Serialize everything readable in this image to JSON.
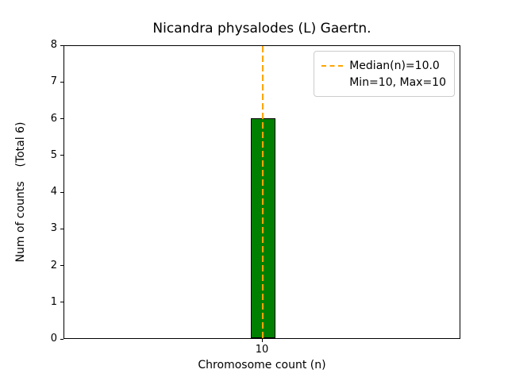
{
  "figure": {
    "title": "Nicandra physalodes (L) Gaertn."
  },
  "axes": {
    "xlabel": "Chromosome count (n)",
    "ylabel": "Num of counts    (Total 6)"
  },
  "legend": {
    "median_label": "Median(n)=10.0",
    "minmax_label": "Min=10, Max=10"
  },
  "chart_data": {
    "type": "bar",
    "title": "Nicandra physalodes (L) Gaertn.",
    "categories": [
      "10"
    ],
    "values": [
      6
    ],
    "xlabel": "Chromosome count (n)",
    "ylabel": "Num of counts (Total 6)",
    "ylim": [
      0,
      8
    ],
    "yticks": [
      0,
      1,
      2,
      3,
      4,
      5,
      6,
      7,
      8
    ],
    "bar_color": "#008000",
    "bar_edge_color": "#000000",
    "median_line": {
      "x": 10,
      "value": 10.0,
      "color": "#ffa500",
      "style": "dashed",
      "label": "Median(n)=10.0"
    },
    "annotations": [
      "Min=10, Max=10"
    ],
    "legend_position": "upper right",
    "grid": false,
    "total_counts": 6,
    "min": 10,
    "max": 10
  }
}
